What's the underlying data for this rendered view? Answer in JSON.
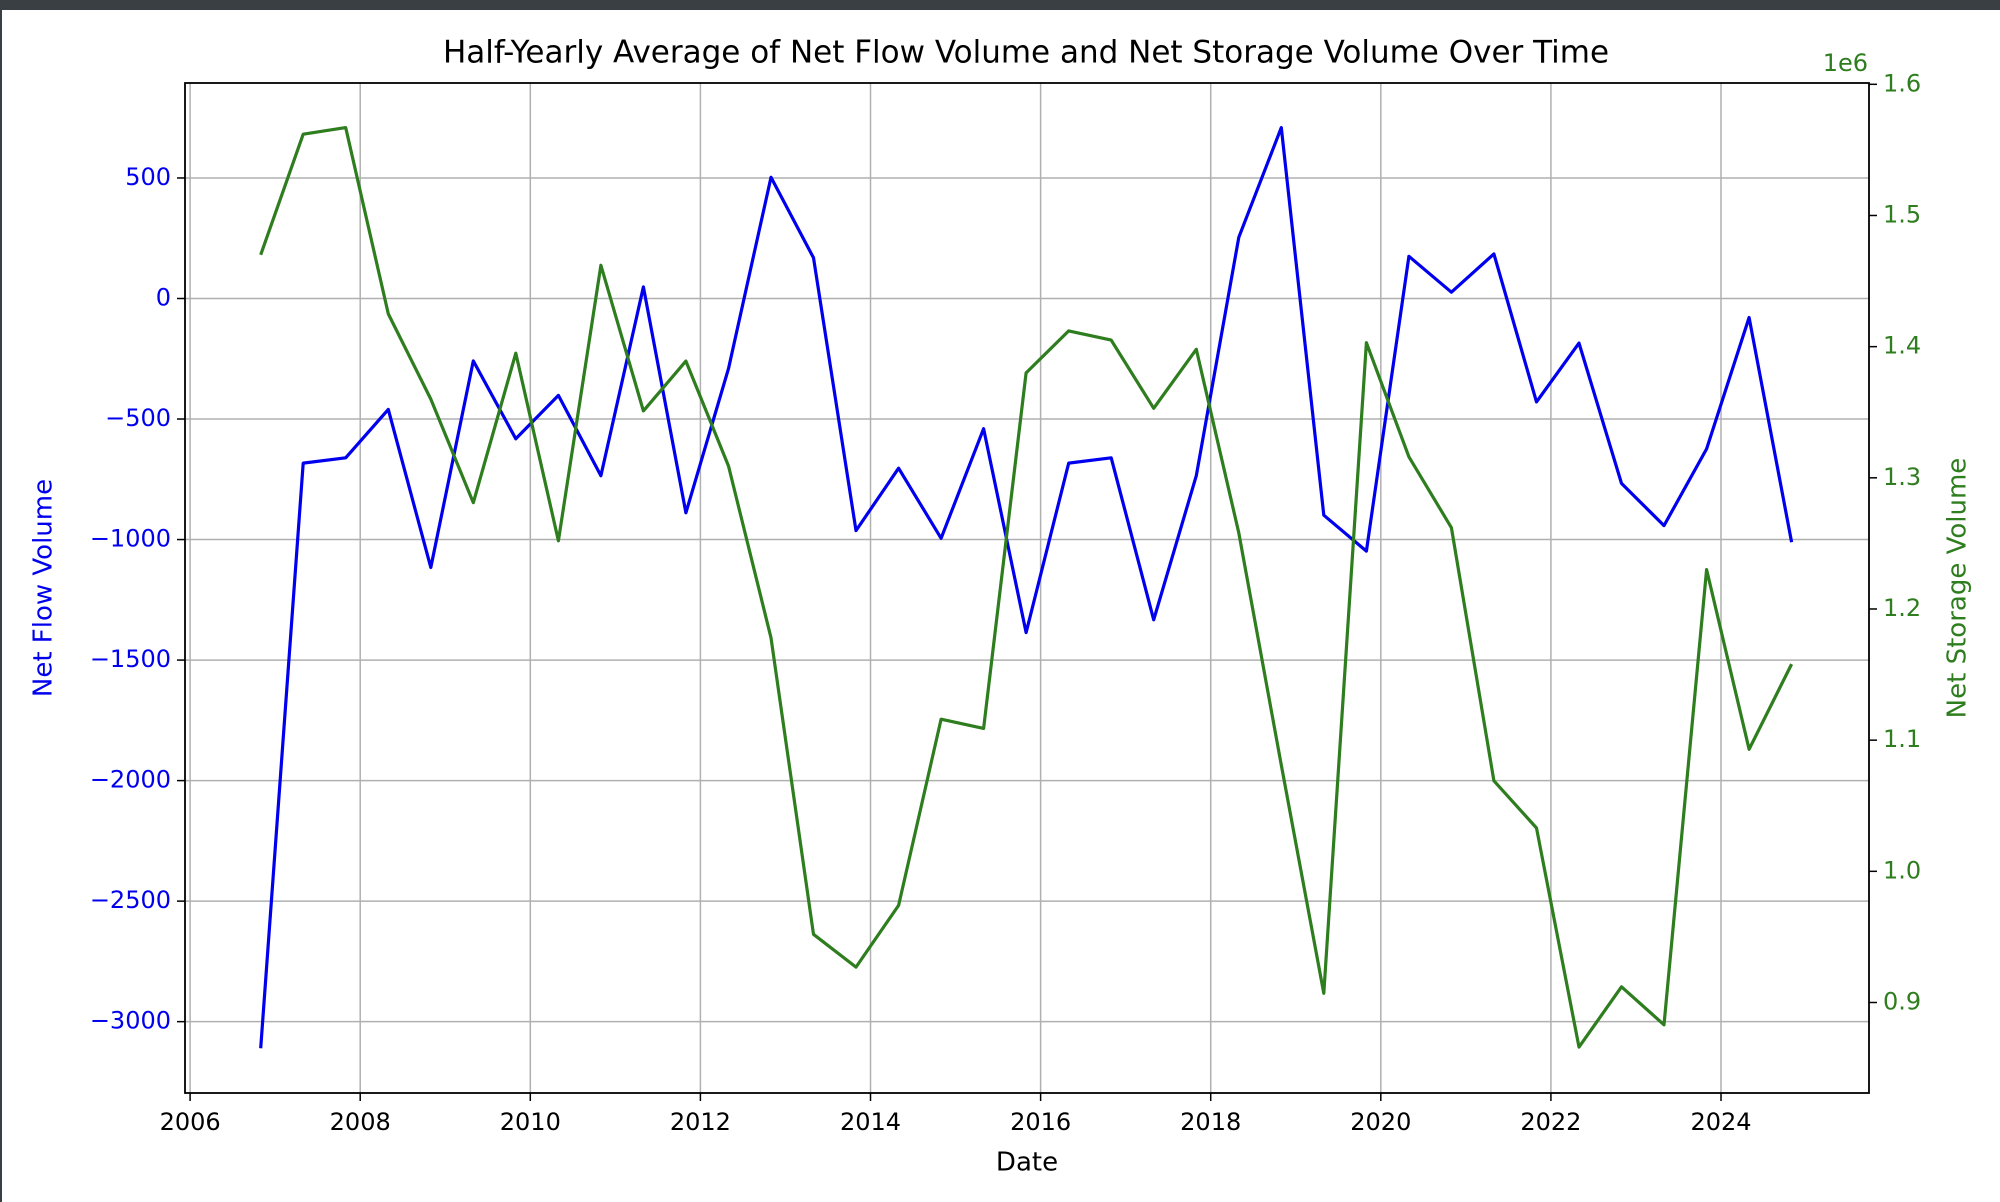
{
  "chart_data": {
    "type": "line",
    "title": "Half-Yearly Average of Net Flow Volume and Net Storage Volume Over Time",
    "xlabel": "Date",
    "ylabel": "Net Flow Volume",
    "y2label": "Net Storage Volume",
    "y2_offset_label": "1e6",
    "x": [
      2006.83,
      2007.33,
      2007.83,
      2008.33,
      2008.83,
      2009.33,
      2009.83,
      2010.33,
      2010.83,
      2011.33,
      2011.83,
      2012.33,
      2012.83,
      2013.33,
      2013.83,
      2014.33,
      2014.83,
      2015.33,
      2015.83,
      2016.33,
      2016.83,
      2017.33,
      2017.83,
      2018.33,
      2018.83,
      2019.33,
      2019.83,
      2020.33,
      2020.83,
      2021.33,
      2021.83,
      2022.33,
      2022.83,
      2023.33,
      2023.83,
      2024.33,
      2024.83
    ],
    "series": [
      {
        "name": "Net Flow Volume",
        "color": "#0000ee",
        "axis": "y",
        "values": [
          -3110,
          -683,
          -661,
          -460,
          -1116,
          -259,
          -582,
          -402,
          -735,
          48,
          -889,
          -291,
          503,
          169,
          -963,
          -704,
          -995,
          -540,
          -1386,
          -683,
          -661,
          -1333,
          -735,
          254,
          709,
          -899,
          -1048,
          175,
          26,
          185,
          -429,
          -185,
          -767,
          -942,
          -624,
          -79,
          -1011
        ]
      },
      {
        "name": "Net Storage Volume",
        "color": "#2e7d1e",
        "axis": "y2",
        "values": [
          1470000,
          1562000,
          1567000,
          1425000,
          1360000,
          1281000,
          1395000,
          1252000,
          1462000,
          1351000,
          1389000,
          1309000,
          1178000,
          952000,
          927000,
          974000,
          1116000,
          1109000,
          1380000,
          1412000,
          1405000,
          1353000,
          1398000,
          1258000,
          1081000,
          907000,
          1403000,
          1316000,
          1262000,
          1069000,
          1033000,
          866000,
          912000,
          883000,
          1230000,
          1093000,
          1158000
        ]
      }
    ],
    "xlim": [
      2005.94,
      2025.74
    ],
    "xticks": [
      2006,
      2008,
      2010,
      2012,
      2014,
      2016,
      2018,
      2020,
      2022,
      2024
    ],
    "ylim": [
      -3296,
      894
    ],
    "yticks": [
      {
        "value": -3000,
        "label": "−3000"
      },
      {
        "value": -2500,
        "label": "−2500"
      },
      {
        "value": -2000,
        "label": "−2000"
      },
      {
        "value": -1500,
        "label": "−1500"
      },
      {
        "value": -1000,
        "label": "−1000"
      },
      {
        "value": -500,
        "label": "−500"
      },
      0,
      500
    ],
    "y2lim": [
      831000,
      1601000
    ],
    "y2ticks": [
      {
        "value": 900000,
        "label": "0.9"
      },
      {
        "value": 1000000,
        "label": "1.0"
      },
      {
        "value": 1100000,
        "label": "1.1"
      },
      {
        "value": 1200000,
        "label": "1.2"
      },
      {
        "value": 1300000,
        "label": "1.3"
      },
      {
        "value": 1400000,
        "label": "1.4"
      },
      {
        "value": 1500000,
        "label": "1.5"
      },
      {
        "value": 1600000,
        "label": "1.6"
      }
    ],
    "grid": true
  }
}
